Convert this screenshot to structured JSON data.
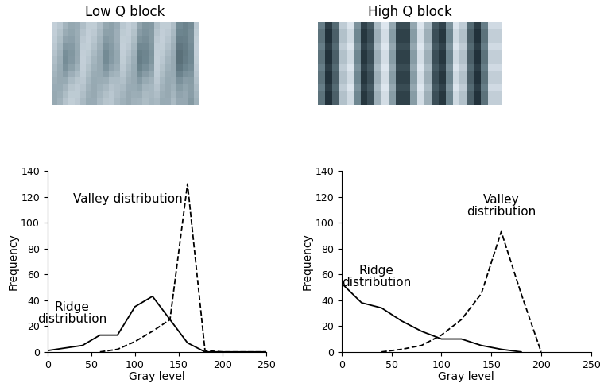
{
  "chart_data": [
    {
      "type": "line",
      "title": "Low Q block",
      "x": [
        0,
        20,
        40,
        60,
        80,
        100,
        120,
        140,
        160,
        180,
        200,
        250
      ],
      "series": [
        {
          "name": "Ridge distribution",
          "color": "#000000",
          "line_style": "solid",
          "values": [
            1,
            3,
            5,
            13,
            13,
            35,
            43,
            25,
            7,
            0,
            0,
            0
          ]
        },
        {
          "name": "Valley distribution",
          "color": "#000000",
          "line_style": "dashed",
          "values": [
            null,
            null,
            null,
            0,
            2,
            8,
            16,
            25,
            130,
            1,
            0,
            0
          ]
        }
      ],
      "x_label": "Gray level",
      "y_label": "Frequency",
      "xlim": [
        0,
        250
      ],
      "xticks": [
        0,
        50,
        100,
        150,
        200,
        250
      ],
      "ylim": [
        0,
        140
      ],
      "yticks": [
        0,
        20,
        40,
        60,
        80,
        100,
        120,
        140
      ],
      "grid": false
    },
    {
      "type": "line",
      "title": "High Q block",
      "x": [
        0,
        20,
        40,
        60,
        80,
        100,
        120,
        140,
        160,
        180,
        200
      ],
      "series": [
        {
          "name": "Ridge distribution",
          "color": "#000000",
          "line_style": "solid",
          "values": [
            53,
            38,
            34,
            24,
            16,
            10,
            10,
            5,
            2,
            0,
            null
          ]
        },
        {
          "name": "Valley distribution",
          "color": "#000000",
          "line_style": "dashed",
          "values": [
            null,
            null,
            0,
            2,
            5,
            13,
            25,
            45,
            93,
            45,
            0
          ]
        }
      ],
      "x_label": "Gray level",
      "y_label": "Frequency",
      "xlim": [
        0,
        250
      ],
      "xticks": [
        0,
        50,
        100,
        150,
        200,
        250
      ],
      "ylim": [
        0,
        140
      ],
      "yticks": [
        0,
        20,
        40,
        60,
        80,
        100,
        120,
        140
      ],
      "grid": false
    }
  ]
}
